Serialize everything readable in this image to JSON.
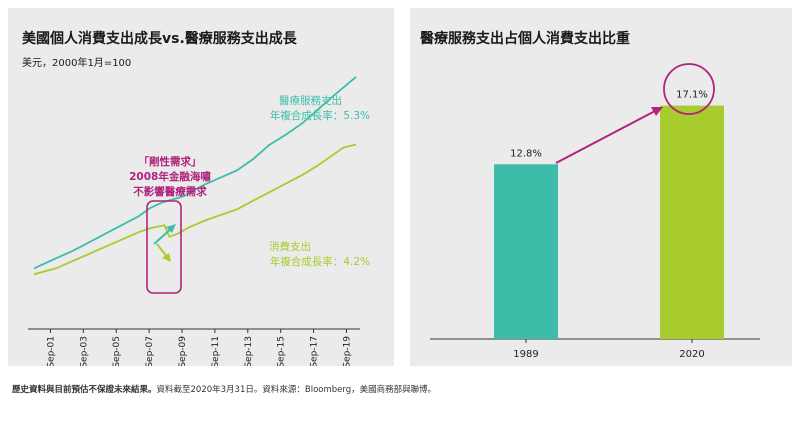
{
  "left_chart": {
    "title": "美國個人消費支出成長vs.醫療服務支出成長",
    "subtitle": "美元，2000年1月=100",
    "annotation": [
      "「剛性需求」",
      "2008年金融海嘯",
      "不影響醫療需求"
    ],
    "series_labels": {
      "healthcare": [
        "醫療服務支出",
        "年複合成長率：5.3%"
      ],
      "consumer": [
        "消費支出",
        "年複合成長率：4.2%"
      ]
    }
  },
  "right_chart": {
    "title": "醫療服務支出占個人消費支出比重"
  },
  "footnote": {
    "bold": "歷史資料與目前預估不保證未來結果。",
    "rest": "資料截至2020年3月31日。資料來源：Bloomberg，美國商務部與聯博。"
  },
  "colors": {
    "healthcare": "#3dbda9",
    "consumer": "#a8cc2e",
    "accent": "#b0247e",
    "panel_bg": "#ebebeb"
  },
  "chart_data": [
    {
      "type": "line",
      "x_ticks": [
        "Sep-01",
        "Sep-03",
        "Sep-05",
        "Sep-07",
        "Sep-09",
        "Sep-11",
        "Sep-13",
        "Sep-15",
        "Sep-17",
        "Sep-19"
      ],
      "x_range": [
        2000.67,
        2020.25
      ],
      "series": [
        {
          "name": "醫療服務支出",
          "x": [
            2000.67,
            2002,
            2003,
            2004,
            2005,
            2006,
            2007,
            2007.75,
            2008.5,
            2009.75,
            2010.5,
            2011,
            2012,
            2013,
            2014,
            2015,
            2016,
            2017,
            2018,
            2019,
            2020.25
          ],
          "y": [
            100,
            107,
            112,
            118,
            124,
            130,
            136,
            142,
            146,
            150,
            155,
            158,
            163,
            168,
            176,
            186,
            193,
            201,
            211,
            221,
            233
          ]
        },
        {
          "name": "消費支出",
          "x": [
            2000.67,
            2002,
            2003,
            2004,
            2005,
            2006,
            2007,
            2007.75,
            2008.6,
            2008.9,
            2009.4,
            2010,
            2011,
            2012,
            2013,
            2014,
            2015,
            2016,
            2017,
            2018,
            2019,
            2019.5,
            2020.25
          ],
          "y": [
            96,
            100,
            105,
            110,
            115,
            120,
            125,
            128,
            130,
            122,
            124,
            128,
            133,
            137,
            141,
            147,
            153,
            159,
            165,
            172,
            180,
            184,
            186
          ]
        }
      ]
    },
    {
      "type": "bar",
      "categories": [
        "1989",
        "2020"
      ],
      "values": [
        12.8,
        17.1
      ],
      "value_labels": [
        "12.8%",
        "17.1%"
      ],
      "ylim": [
        0,
        20
      ]
    }
  ]
}
